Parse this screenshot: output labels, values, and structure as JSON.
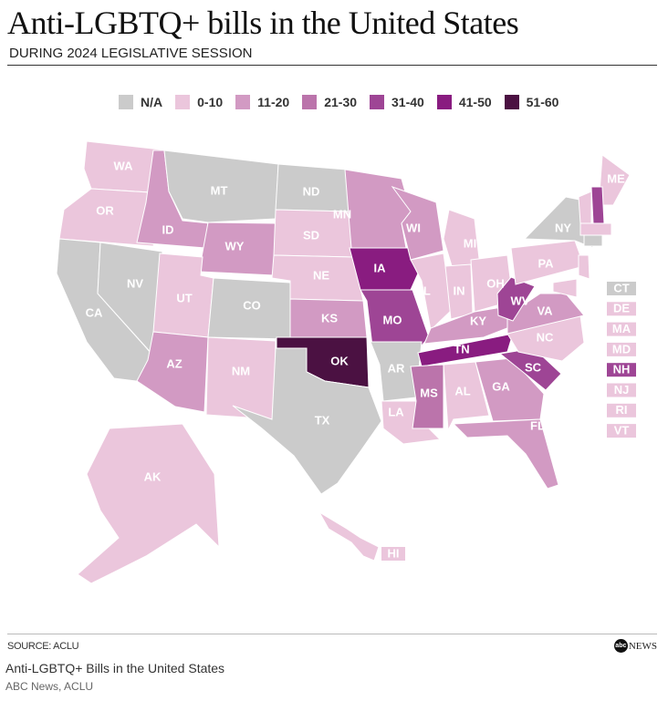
{
  "header": {
    "title": "Anti-LGBTQ+ bills in the United States",
    "subtitle": "DURING 2024 LEGISLATIVE SESSION"
  },
  "legend": [
    {
      "label": "N/A",
      "color": "#cbcbcb"
    },
    {
      "label": "0-10",
      "color": "#ebc6dc"
    },
    {
      "label": "11-20",
      "color": "#d29ac3"
    },
    {
      "label": "21-30",
      "color": "#bb74ab"
    },
    {
      "label": "31-40",
      "color": "#9e4595"
    },
    {
      "label": "41-50",
      "color": "#891c80"
    },
    {
      "label": "51-60",
      "color": "#4b1142"
    }
  ],
  "states": [
    {
      "abbr": "WA",
      "bin": 1
    },
    {
      "abbr": "OR",
      "bin": 1
    },
    {
      "abbr": "CA",
      "bin": 0
    },
    {
      "abbr": "NV",
      "bin": 0
    },
    {
      "abbr": "ID",
      "bin": 2
    },
    {
      "abbr": "MT",
      "bin": 0
    },
    {
      "abbr": "WY",
      "bin": 2
    },
    {
      "abbr": "UT",
      "bin": 1
    },
    {
      "abbr": "CO",
      "bin": 0
    },
    {
      "abbr": "AZ",
      "bin": 2
    },
    {
      "abbr": "NM",
      "bin": 1
    },
    {
      "abbr": "ND",
      "bin": 0
    },
    {
      "abbr": "SD",
      "bin": 1
    },
    {
      "abbr": "NE",
      "bin": 1
    },
    {
      "abbr": "KS",
      "bin": 2
    },
    {
      "abbr": "OK",
      "bin": 6
    },
    {
      "abbr": "TX",
      "bin": 0
    },
    {
      "abbr": "MN",
      "bin": 2
    },
    {
      "abbr": "IA",
      "bin": 5
    },
    {
      "abbr": "MO",
      "bin": 4
    },
    {
      "abbr": "AR",
      "bin": 0
    },
    {
      "abbr": "LA",
      "bin": 1
    },
    {
      "abbr": "WI",
      "bin": 2
    },
    {
      "abbr": "IL",
      "bin": 1
    },
    {
      "abbr": "MI",
      "bin": 1
    },
    {
      "abbr": "IN",
      "bin": 1
    },
    {
      "abbr": "OH",
      "bin": 1
    },
    {
      "abbr": "KY",
      "bin": 2
    },
    {
      "abbr": "TN",
      "bin": 5
    },
    {
      "abbr": "MS",
      "bin": 3
    },
    {
      "abbr": "AL",
      "bin": 1
    },
    {
      "abbr": "GA",
      "bin": 2
    },
    {
      "abbr": "FL",
      "bin": 2
    },
    {
      "abbr": "SC",
      "bin": 4
    },
    {
      "abbr": "NC",
      "bin": 1
    },
    {
      "abbr": "VA",
      "bin": 2
    },
    {
      "abbr": "WV",
      "bin": 4
    },
    {
      "abbr": "PA",
      "bin": 1
    },
    {
      "abbr": "NY",
      "bin": 0
    },
    {
      "abbr": "ME",
      "bin": 1
    },
    {
      "abbr": "AK",
      "bin": 1
    },
    {
      "abbr": "HI",
      "bin": 1
    }
  ],
  "small_states": [
    {
      "abbr": "CT",
      "bin": 0
    },
    {
      "abbr": "DE",
      "bin": 1
    },
    {
      "abbr": "MA",
      "bin": 1
    },
    {
      "abbr": "MD",
      "bin": 1
    },
    {
      "abbr": "NH",
      "bin": 4
    },
    {
      "abbr": "NJ",
      "bin": 1
    },
    {
      "abbr": "RI",
      "bin": 1
    },
    {
      "abbr": "VT",
      "bin": 1
    }
  ],
  "footer": {
    "source": "SOURCE: ACLU",
    "logo": "NEWS",
    "logo_mark": "abc",
    "caption": "Anti-LGBTQ+ Bills in the United States",
    "credit": "ABC News, ACLU"
  }
}
